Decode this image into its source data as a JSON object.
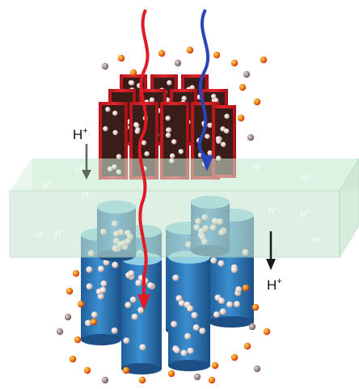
{
  "labels": {
    "h_top_left": "H",
    "h_bottom_right": "H",
    "h_small": "H",
    "plus": "+"
  },
  "membrane_labels_count_note": "",
  "colors": {
    "membrane": "#cfe9d6",
    "membrane_edge": "#9cc8a8",
    "red_tube": "#d0202a",
    "blue_tube": "#2f7fc0",
    "red_arrow": "#e01b24",
    "blue_arrow": "#2a45b8",
    "gray_arrow": "#5a6b5e",
    "particle_dark": "#4b2a22",
    "particle_light": "#e8d8d4",
    "particle_orange": "#f0a010",
    "particle_red": "#e03010"
  }
}
